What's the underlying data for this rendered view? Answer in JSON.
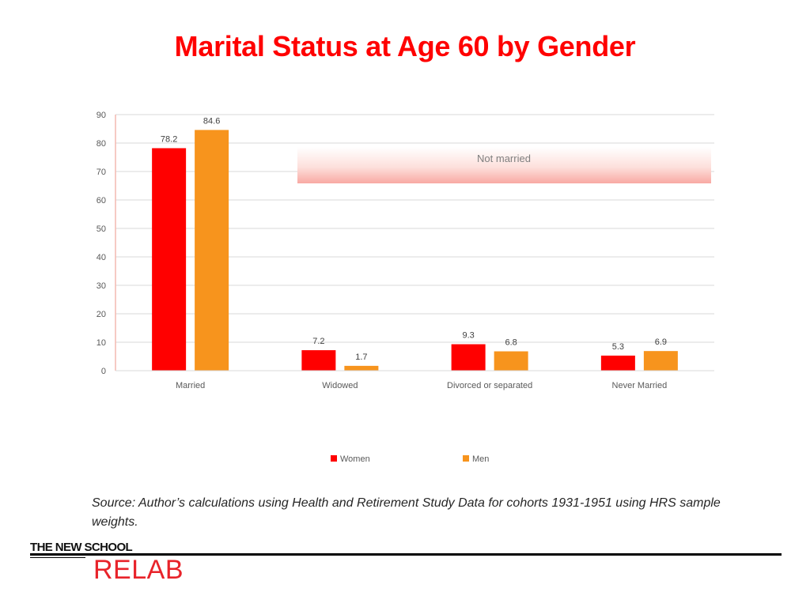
{
  "title": "Marital Status at Age 60 by Gender",
  "chart_data": {
    "type": "bar",
    "categories": [
      "Married",
      "Widowed",
      "Divorced or separated",
      "Never Married"
    ],
    "series": [
      {
        "name": "Women",
        "values": [
          78.2,
          7.2,
          9.3,
          5.3
        ],
        "color": "#ff0000"
      },
      {
        "name": "Men",
        "values": [
          84.6,
          1.7,
          6.8,
          6.9
        ],
        "color": "#f7941d"
      }
    ],
    "ylim": [
      0,
      90
    ],
    "yticks": [
      0,
      10,
      20,
      30,
      40,
      50,
      60,
      70,
      80,
      90
    ],
    "grid": true,
    "legend_position": "bottom",
    "annotation": "Not married",
    "data_labels": [
      "78.2",
      "84.6",
      "7.2",
      "1.7",
      "9.3",
      "6.8",
      "5.3",
      "6.9"
    ]
  },
  "source": "Source: Author’s calculations using Health and Retirement Study Data for cohorts 1931-1951 using HRS sample weights.",
  "logo": {
    "line1": "THE NEW SCHOOL",
    "line2": "RELAB"
  }
}
